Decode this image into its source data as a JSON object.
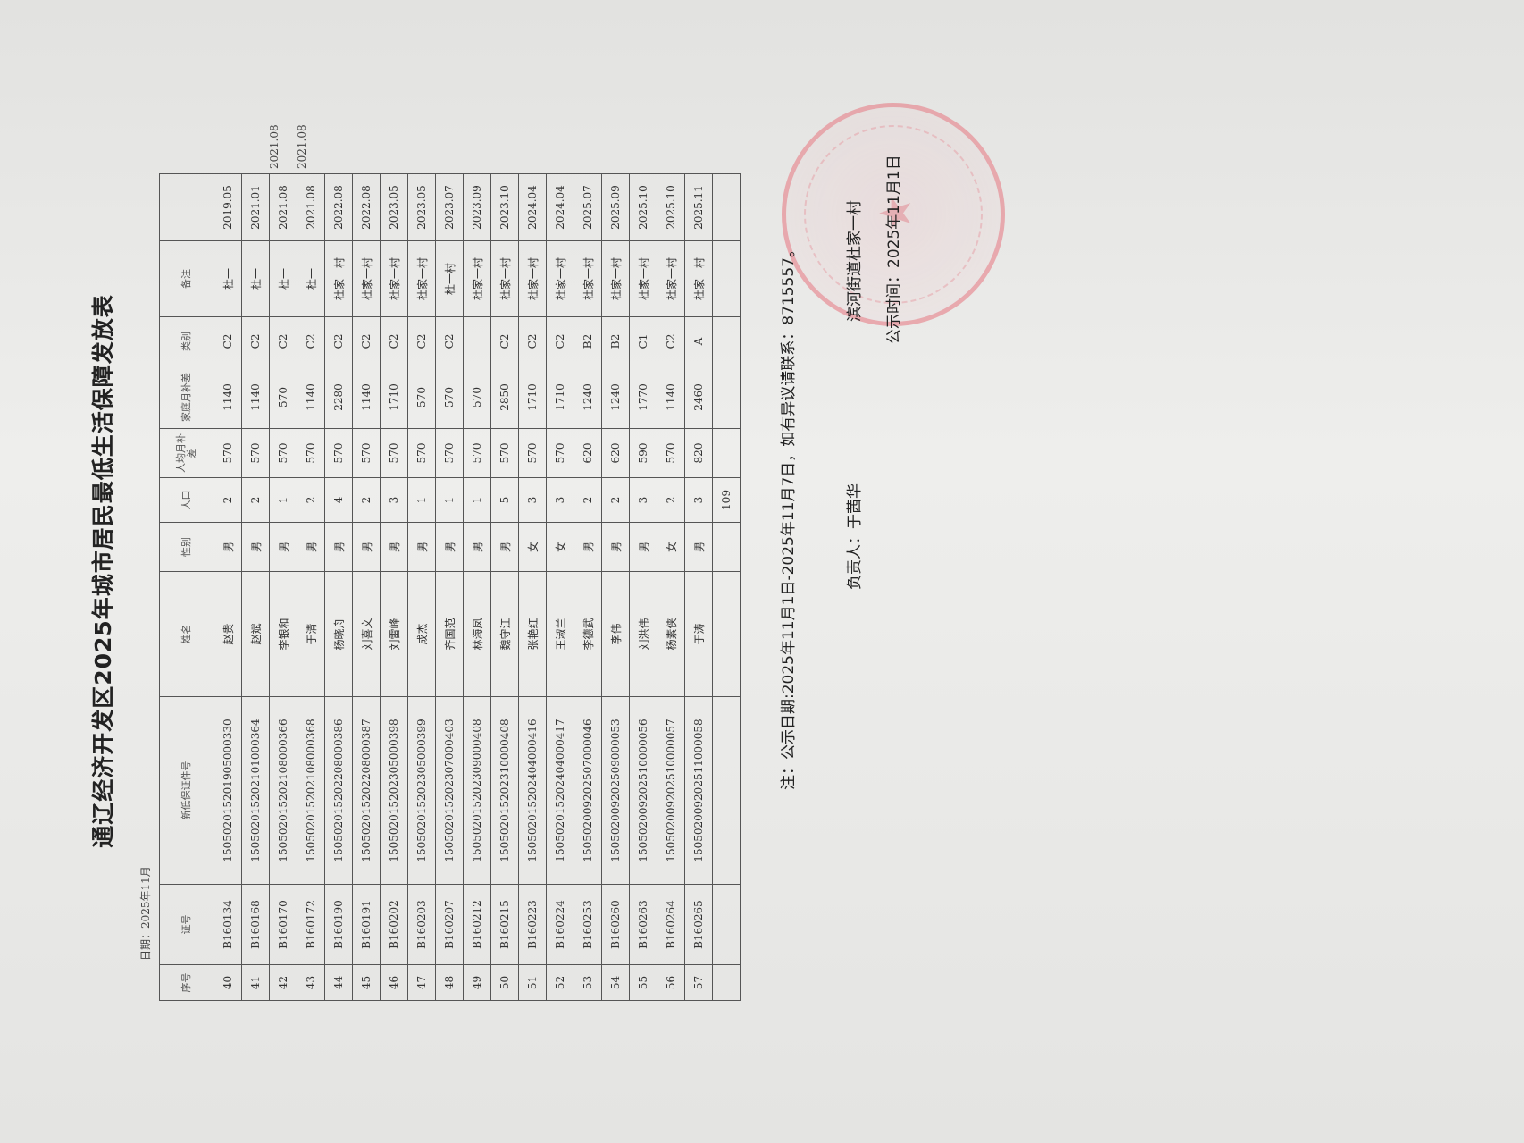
{
  "document": {
    "title": "通辽经济开发区2025年城市居民最低生活保障发放表",
    "date_line": "日期：2025年11月",
    "headers": [
      "序号",
      "证号",
      "新低保证件号",
      "姓名",
      "性别",
      "人口",
      "人均月补差",
      "家庭月补差",
      "类别",
      "备注",
      ""
    ],
    "rows": [
      [
        "40",
        "B160134",
        "150502015201905000330",
        "赵贵",
        "男",
        "2",
        "570",
        "1140",
        "C2",
        "杜一",
        "2019.05"
      ],
      [
        "41",
        "B160168",
        "150502015202101000364",
        "赵斌",
        "男",
        "2",
        "570",
        "1140",
        "C2",
        "杜一",
        "2021.01"
      ],
      [
        "42",
        "B160170",
        "150502015202108000366",
        "李银和",
        "男",
        "1",
        "570",
        "570",
        "C2",
        "杜一",
        "2021.08"
      ],
      [
        "43",
        "B160172",
        "150502015202108000368",
        "于清",
        "男",
        "2",
        "570",
        "1140",
        "C2",
        "杜一",
        "2021.08"
      ],
      [
        "44",
        "B160190",
        "150502015202208000386",
        "杨晓舟",
        "男",
        "4",
        "570",
        "2280",
        "C2",
        "杜家一村",
        "2022.08"
      ],
      [
        "45",
        "B160191",
        "150502015202208000387",
        "刘喜文",
        "男",
        "2",
        "570",
        "1140",
        "C2",
        "杜家一村",
        "2022.08"
      ],
      [
        "46",
        "B160202",
        "150502015202305000398",
        "刘雷峰",
        "男",
        "3",
        "570",
        "1710",
        "C2",
        "杜家一村",
        "2023.05"
      ],
      [
        "47",
        "B160203",
        "150502015202305000399",
        "成杰",
        "男",
        "1",
        "570",
        "570",
        "C2",
        "杜家一村",
        "2023.05"
      ],
      [
        "48",
        "B160207",
        "150502015202307000403",
        "齐国范",
        "男",
        "1",
        "570",
        "570",
        "C2",
        "杜一村",
        "2023.07"
      ],
      [
        "49",
        "B160212",
        "150502015202309000408",
        "林海凤",
        "男",
        "1",
        "570",
        "570",
        "",
        "杜家一村",
        "2023.09"
      ],
      [
        "50",
        "B160215",
        "150502015202310000408",
        "魏守江",
        "男",
        "5",
        "570",
        "2850",
        "C2",
        "杜家一村",
        "2023.10"
      ],
      [
        "51",
        "B160223",
        "150502015202404000416",
        "张艳红",
        "女",
        "3",
        "570",
        "1710",
        "C2",
        "杜家一村",
        "2024.04"
      ],
      [
        "52",
        "B160224",
        "150502015202404000417",
        "王淑兰",
        "女",
        "3",
        "570",
        "1710",
        "C2",
        "杜家一村",
        "2024.04"
      ],
      [
        "53",
        "B160253",
        "150502009202507000046",
        "李德武",
        "男",
        "2",
        "620",
        "1240",
        "B2",
        "杜家一村",
        "2025.07"
      ],
      [
        "54",
        "B160260",
        "150502009202509000053",
        "李伟",
        "男",
        "2",
        "620",
        "1240",
        "B2",
        "杜家一村",
        "2025.09"
      ],
      [
        "55",
        "B160263",
        "150502009202510000056",
        "刘洪伟",
        "男",
        "3",
        "590",
        "1770",
        "C1",
        "杜家一村",
        "2025.10"
      ],
      [
        "56",
        "B160264",
        "150502009202510000057",
        "杨素侠",
        "女",
        "2",
        "570",
        "1140",
        "C2",
        "杜家一村",
        "2025.10"
      ],
      [
        "57",
        "B160265",
        "150502009202511000058",
        "于涛",
        "男",
        "3",
        "820",
        "2460",
        "A",
        "杜家一村",
        "2025.11"
      ]
    ],
    "total_row": [
      "",
      "",
      "",
      "",
      "",
      "109",
      "",
      "",
      "",
      "",
      ""
    ],
    "margin_notes": [
      "2021.08",
      "2021.08"
    ],
    "note": "注：公示日期:2025年11月1日-2025年11月7日，如有异议请联系：8715557。",
    "responsible": "负责人：于茜华",
    "organization": "滨河街道杜家一村",
    "publish_time": "公示时间：2025年11月1日",
    "stamp_color": "#e67882"
  }
}
